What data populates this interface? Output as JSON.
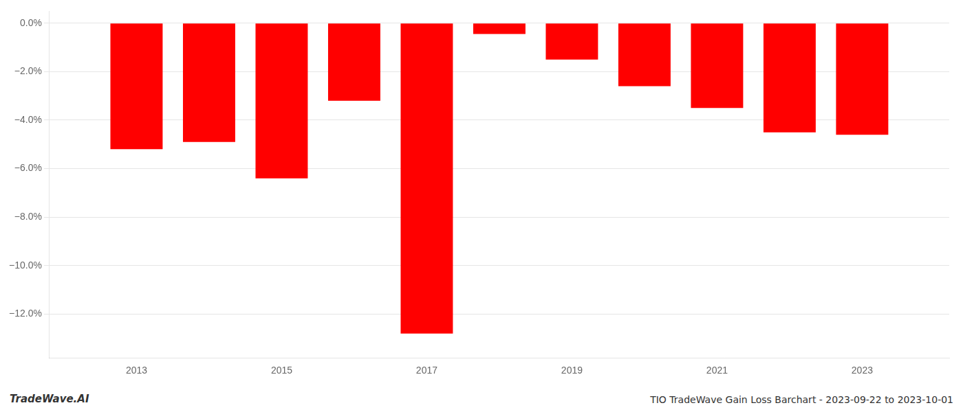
{
  "chart_data": {
    "type": "bar",
    "x": [
      2013,
      2014,
      2015,
      2016,
      2017,
      2018,
      2019,
      2020,
      2021,
      2022,
      2023
    ],
    "values": [
      -5.2,
      -4.9,
      -6.4,
      -3.2,
      -12.8,
      -0.45,
      -1.5,
      -2.6,
      -3.5,
      -4.5,
      -4.6
    ],
    "color": "#ff0000",
    "xlim": [
      2011.8,
      2024.2
    ],
    "xticks": [
      2013,
      2015,
      2017,
      2019,
      2021,
      2023
    ],
    "ylim": [
      -13.8,
      0.5
    ],
    "yticks": [
      {
        "value": 0.0,
        "label": "0.0%"
      },
      {
        "value": -2.0,
        "label": "−2.0%"
      },
      {
        "value": -4.0,
        "label": "−4.0%"
      },
      {
        "value": -6.0,
        "label": "−6.0%"
      },
      {
        "value": -8.0,
        "label": "−8.0%"
      },
      {
        "value": -10.0,
        "label": "−10.0%"
      },
      {
        "value": -12.0,
        "label": "−12.0%"
      }
    ],
    "grid": "y",
    "annotations": [
      "TradeWave.AI",
      "TIO TradeWave Gain Loss Barchart - 2023-09-22 to 2023-10-01"
    ]
  }
}
